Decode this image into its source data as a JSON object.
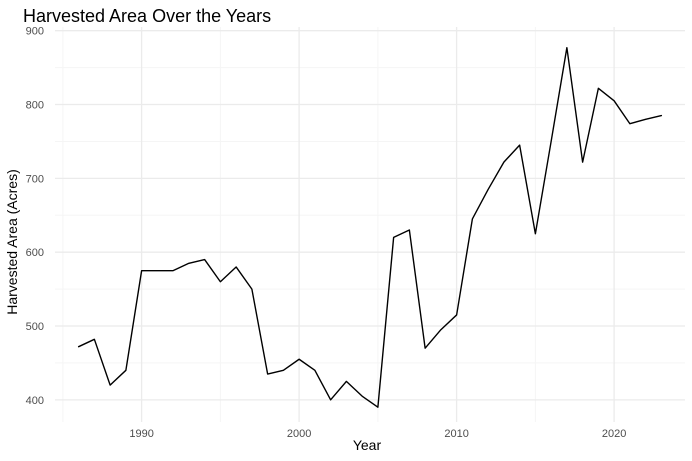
{
  "chart_data": {
    "type": "line",
    "title": "Harvested Area Over the Years",
    "xlabel": "Year",
    "ylabel": "Harvested Area (Acres)",
    "xlim": [
      1984.5,
      2024.5
    ],
    "ylim": [
      370,
      905
    ],
    "x_ticks": [
      1990,
      2000,
      2010,
      2020
    ],
    "x_minor_ticks": [
      1985,
      1995,
      2005,
      2015
    ],
    "y_ticks": [
      400,
      500,
      600,
      700,
      800,
      900
    ],
    "y_minor_ticks": [
      450,
      550,
      650,
      750,
      850
    ],
    "grid": true,
    "legend": "none",
    "series": [
      {
        "color": "#000000",
        "x": [
          1986,
          1987,
          1988,
          1989,
          1990,
          1991,
          1992,
          1993,
          1994,
          1995,
          1996,
          1997,
          1998,
          1999,
          2000,
          2001,
          2002,
          2003,
          2004,
          2005,
          2006,
          2007,
          2008,
          2009,
          2010,
          2011,
          2012,
          2013,
          2014,
          2015,
          2016,
          2017,
          2018,
          2019,
          2020,
          2021,
          2022,
          2023
        ],
        "y": [
          472,
          482,
          420,
          440,
          575,
          575,
          575,
          585,
          590,
          560,
          580,
          550,
          435,
          440,
          455,
          440,
          400,
          425,
          405,
          390,
          620,
          630,
          470,
          495,
          515,
          645,
          685,
          722,
          745,
          625,
          750,
          877,
          722,
          822,
          805,
          774,
          780,
          785
        ]
      }
    ]
  },
  "colors": {
    "background": "#ffffff",
    "major_grid": "#ebebeb",
    "minor_grid": "#f5f5f5",
    "line": "#000000",
    "tick_text": "#4d4d4d"
  }
}
